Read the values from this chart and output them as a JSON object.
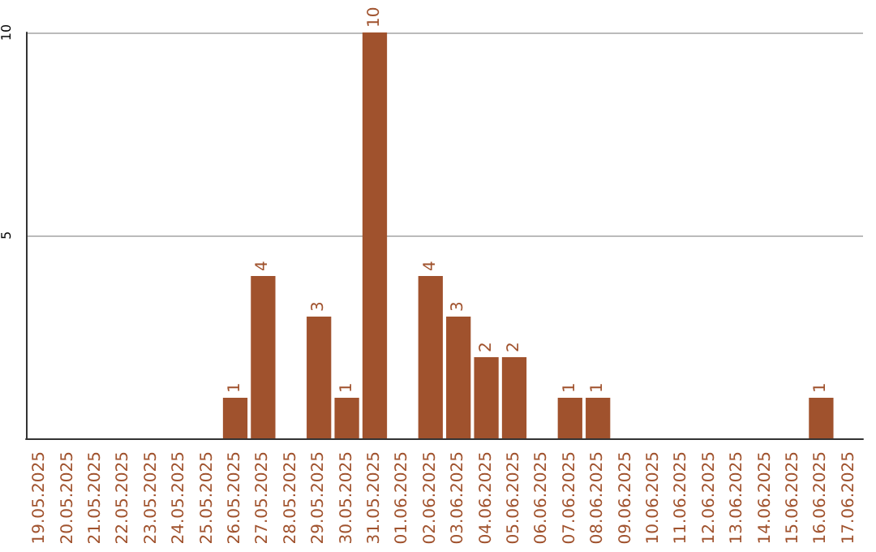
{
  "chart_data": {
    "type": "bar",
    "categories": [
      "19.05.2025",
      "20.05.2025",
      "21.05.2025",
      "22.05.2025",
      "23.05.2025",
      "24.05.2025",
      "25.05.2025",
      "26.05.2025",
      "27.05.2025",
      "28.05.2025",
      "29.05.2025",
      "30.05.2025",
      "31.05.2025",
      "01.06.2025",
      "02.06.2025",
      "03.06.2025",
      "04.06.2025",
      "05.06.2025",
      "06.06.2025",
      "07.06.2025",
      "08.06.2025",
      "09.06.2025",
      "10.06.2025",
      "11.06.2025",
      "12.06.2025",
      "13.06.2025",
      "14.06.2025",
      "15.06.2025",
      "16.06.2025",
      "17.06.2025"
    ],
    "values": [
      0,
      0,
      0,
      0,
      0,
      0,
      0,
      1,
      4,
      0,
      3,
      1,
      10,
      0,
      4,
      3,
      2,
      2,
      0,
      1,
      1,
      0,
      0,
      0,
      0,
      0,
      0,
      0,
      1,
      0
    ],
    "value_labels": [
      null,
      null,
      null,
      null,
      null,
      null,
      null,
      "1",
      "4",
      null,
      "3",
      "1",
      "10",
      null,
      "4",
      "3",
      "2",
      "2",
      null,
      "1",
      "1",
      null,
      null,
      null,
      null,
      null,
      null,
      null,
      "1",
      null
    ],
    "color": "#a0522d",
    "ylim": [
      0,
      10
    ],
    "yticks": [
      5,
      10
    ],
    "grid": "y"
  }
}
